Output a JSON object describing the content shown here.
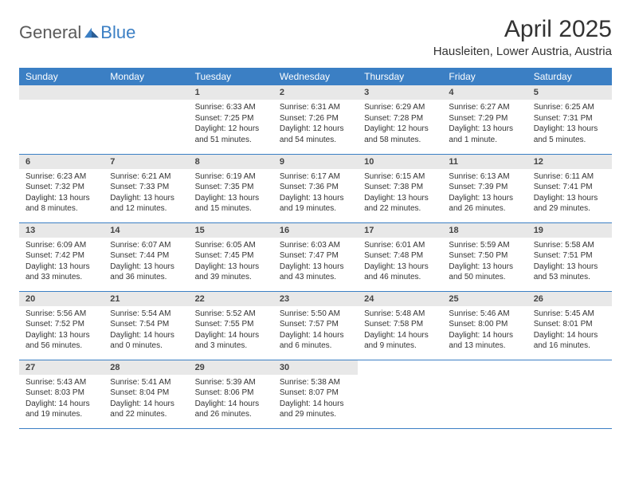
{
  "brand": {
    "text1": "General",
    "text2": "Blue"
  },
  "header": {
    "month_title": "April 2025",
    "location": "Hausleiten, Lower Austria, Austria"
  },
  "colors": {
    "accent": "#3b7fc4",
    "header_bg": "#3b7fc4",
    "daynum_bg": "#e8e8e8",
    "text": "#333333",
    "logo_gray": "#5a5a5a"
  },
  "day_headers": [
    "Sunday",
    "Monday",
    "Tuesday",
    "Wednesday",
    "Thursday",
    "Friday",
    "Saturday"
  ],
  "weeks": [
    [
      null,
      null,
      {
        "n": "1",
        "sunrise": "Sunrise: 6:33 AM",
        "sunset": "Sunset: 7:25 PM",
        "daylight": "Daylight: 12 hours and 51 minutes."
      },
      {
        "n": "2",
        "sunrise": "Sunrise: 6:31 AM",
        "sunset": "Sunset: 7:26 PM",
        "daylight": "Daylight: 12 hours and 54 minutes."
      },
      {
        "n": "3",
        "sunrise": "Sunrise: 6:29 AM",
        "sunset": "Sunset: 7:28 PM",
        "daylight": "Daylight: 12 hours and 58 minutes."
      },
      {
        "n": "4",
        "sunrise": "Sunrise: 6:27 AM",
        "sunset": "Sunset: 7:29 PM",
        "daylight": "Daylight: 13 hours and 1 minute."
      },
      {
        "n": "5",
        "sunrise": "Sunrise: 6:25 AM",
        "sunset": "Sunset: 7:31 PM",
        "daylight": "Daylight: 13 hours and 5 minutes."
      }
    ],
    [
      {
        "n": "6",
        "sunrise": "Sunrise: 6:23 AM",
        "sunset": "Sunset: 7:32 PM",
        "daylight": "Daylight: 13 hours and 8 minutes."
      },
      {
        "n": "7",
        "sunrise": "Sunrise: 6:21 AM",
        "sunset": "Sunset: 7:33 PM",
        "daylight": "Daylight: 13 hours and 12 minutes."
      },
      {
        "n": "8",
        "sunrise": "Sunrise: 6:19 AM",
        "sunset": "Sunset: 7:35 PM",
        "daylight": "Daylight: 13 hours and 15 minutes."
      },
      {
        "n": "9",
        "sunrise": "Sunrise: 6:17 AM",
        "sunset": "Sunset: 7:36 PM",
        "daylight": "Daylight: 13 hours and 19 minutes."
      },
      {
        "n": "10",
        "sunrise": "Sunrise: 6:15 AM",
        "sunset": "Sunset: 7:38 PM",
        "daylight": "Daylight: 13 hours and 22 minutes."
      },
      {
        "n": "11",
        "sunrise": "Sunrise: 6:13 AM",
        "sunset": "Sunset: 7:39 PM",
        "daylight": "Daylight: 13 hours and 26 minutes."
      },
      {
        "n": "12",
        "sunrise": "Sunrise: 6:11 AM",
        "sunset": "Sunset: 7:41 PM",
        "daylight": "Daylight: 13 hours and 29 minutes."
      }
    ],
    [
      {
        "n": "13",
        "sunrise": "Sunrise: 6:09 AM",
        "sunset": "Sunset: 7:42 PM",
        "daylight": "Daylight: 13 hours and 33 minutes."
      },
      {
        "n": "14",
        "sunrise": "Sunrise: 6:07 AM",
        "sunset": "Sunset: 7:44 PM",
        "daylight": "Daylight: 13 hours and 36 minutes."
      },
      {
        "n": "15",
        "sunrise": "Sunrise: 6:05 AM",
        "sunset": "Sunset: 7:45 PM",
        "daylight": "Daylight: 13 hours and 39 minutes."
      },
      {
        "n": "16",
        "sunrise": "Sunrise: 6:03 AM",
        "sunset": "Sunset: 7:47 PM",
        "daylight": "Daylight: 13 hours and 43 minutes."
      },
      {
        "n": "17",
        "sunrise": "Sunrise: 6:01 AM",
        "sunset": "Sunset: 7:48 PM",
        "daylight": "Daylight: 13 hours and 46 minutes."
      },
      {
        "n": "18",
        "sunrise": "Sunrise: 5:59 AM",
        "sunset": "Sunset: 7:50 PM",
        "daylight": "Daylight: 13 hours and 50 minutes."
      },
      {
        "n": "19",
        "sunrise": "Sunrise: 5:58 AM",
        "sunset": "Sunset: 7:51 PM",
        "daylight": "Daylight: 13 hours and 53 minutes."
      }
    ],
    [
      {
        "n": "20",
        "sunrise": "Sunrise: 5:56 AM",
        "sunset": "Sunset: 7:52 PM",
        "daylight": "Daylight: 13 hours and 56 minutes."
      },
      {
        "n": "21",
        "sunrise": "Sunrise: 5:54 AM",
        "sunset": "Sunset: 7:54 PM",
        "daylight": "Daylight: 14 hours and 0 minutes."
      },
      {
        "n": "22",
        "sunrise": "Sunrise: 5:52 AM",
        "sunset": "Sunset: 7:55 PM",
        "daylight": "Daylight: 14 hours and 3 minutes."
      },
      {
        "n": "23",
        "sunrise": "Sunrise: 5:50 AM",
        "sunset": "Sunset: 7:57 PM",
        "daylight": "Daylight: 14 hours and 6 minutes."
      },
      {
        "n": "24",
        "sunrise": "Sunrise: 5:48 AM",
        "sunset": "Sunset: 7:58 PM",
        "daylight": "Daylight: 14 hours and 9 minutes."
      },
      {
        "n": "25",
        "sunrise": "Sunrise: 5:46 AM",
        "sunset": "Sunset: 8:00 PM",
        "daylight": "Daylight: 14 hours and 13 minutes."
      },
      {
        "n": "26",
        "sunrise": "Sunrise: 5:45 AM",
        "sunset": "Sunset: 8:01 PM",
        "daylight": "Daylight: 14 hours and 16 minutes."
      }
    ],
    [
      {
        "n": "27",
        "sunrise": "Sunrise: 5:43 AM",
        "sunset": "Sunset: 8:03 PM",
        "daylight": "Daylight: 14 hours and 19 minutes."
      },
      {
        "n": "28",
        "sunrise": "Sunrise: 5:41 AM",
        "sunset": "Sunset: 8:04 PM",
        "daylight": "Daylight: 14 hours and 22 minutes."
      },
      {
        "n": "29",
        "sunrise": "Sunrise: 5:39 AM",
        "sunset": "Sunset: 8:06 PM",
        "daylight": "Daylight: 14 hours and 26 minutes."
      },
      {
        "n": "30",
        "sunrise": "Sunrise: 5:38 AM",
        "sunset": "Sunset: 8:07 PM",
        "daylight": "Daylight: 14 hours and 29 minutes."
      },
      null,
      null,
      null
    ]
  ]
}
